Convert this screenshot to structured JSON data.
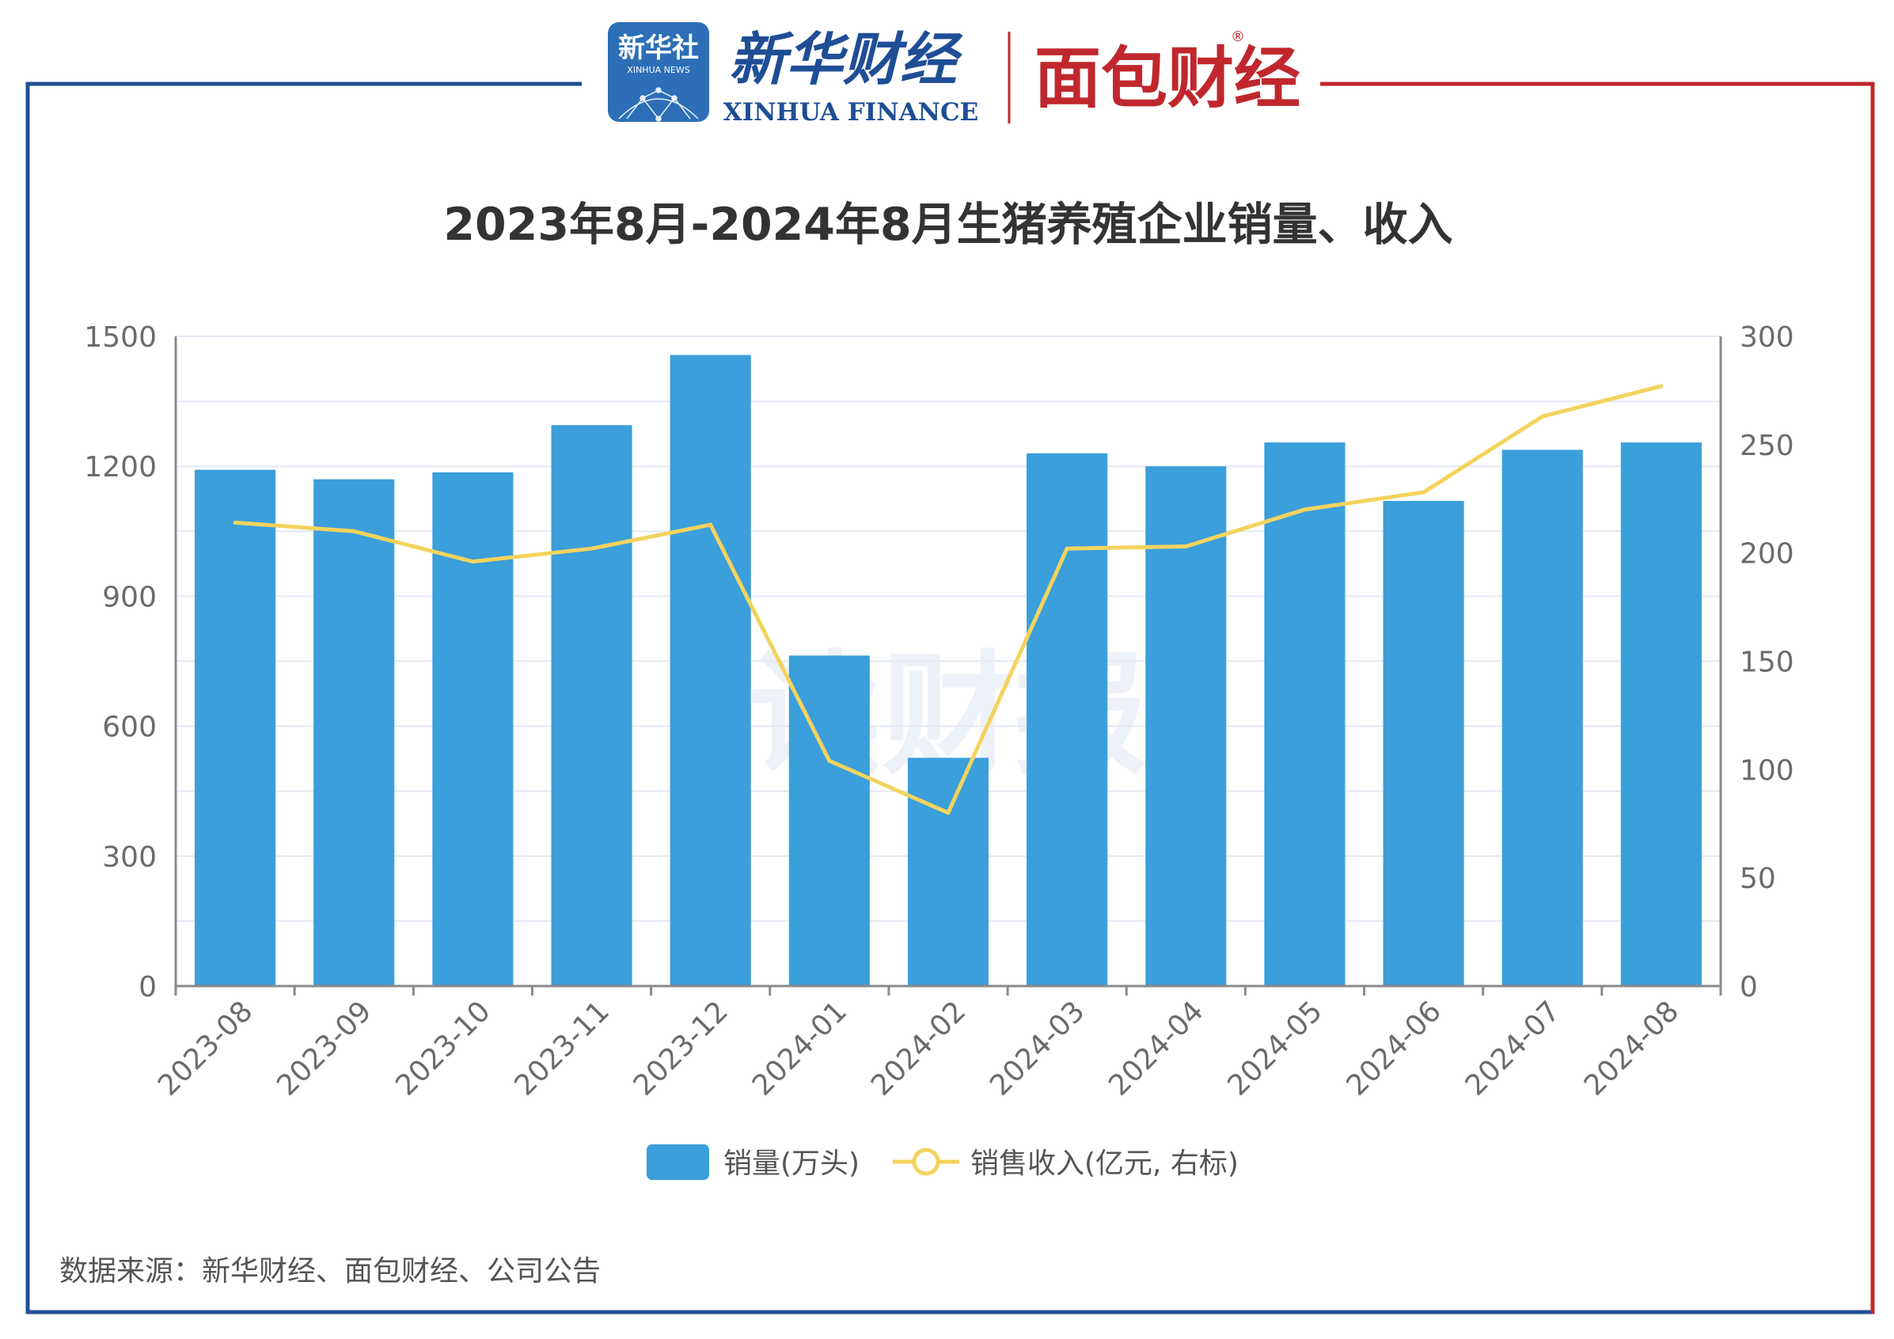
{
  "header": {
    "xinhua_badge_cn": "新华社",
    "xinhua_badge_en": "XINHUA NEWS",
    "xinhua_finance_cn": "新华财经",
    "xinhua_finance_en": "XINHUA FINANCE",
    "mianbao_cn": "面包财经",
    "registered_mark": "®",
    "colors": {
      "left_rule": "#1f4e96",
      "right_rule": "#c0272d",
      "badge": "#2c6fb7",
      "xinhua_text": "#1f4e96",
      "mianbao_text": "#c0272d"
    }
  },
  "watermark": "读财报",
  "footer": {
    "source": "数据来源：新华财经、面包财经、公司公告"
  },
  "chart_data": {
    "type": "bar",
    "title": "2023年8月-2024年8月生猪养殖企业销量、收入",
    "categories": [
      "2023-08",
      "2023-09",
      "2023-10",
      "2023-11",
      "2023-12",
      "2024-01",
      "2024-02",
      "2024-03",
      "2024-04",
      "2024-05",
      "2024-06",
      "2024-07",
      "2024-08"
    ],
    "y_left": {
      "ticks": [
        "0",
        "300",
        "600",
        "900",
        "1200",
        "1500"
      ],
      "range": [
        0,
        1500
      ]
    },
    "y_right": {
      "ticks": [
        "0",
        "50",
        "100",
        "150",
        "200",
        "250",
        "300"
      ],
      "range": [
        0,
        300
      ]
    },
    "grid": true,
    "legend_position": "bottom-center",
    "series": [
      {
        "name": "销量(万头)",
        "type": "bar",
        "axis": "left",
        "color": "#3a9fda",
        "values": [
          1192,
          1170,
          1186,
          1295,
          1457,
          763,
          527,
          1230,
          1200,
          1255,
          1120,
          1238,
          1255
        ]
      },
      {
        "name": "销售收入(亿元, 右标)",
        "type": "line",
        "axis": "right",
        "color": "#f4d35e",
        "values": [
          214,
          210,
          196,
          202,
          213,
          104,
          80,
          202,
          203,
          220,
          228,
          263,
          277
        ]
      }
    ]
  }
}
